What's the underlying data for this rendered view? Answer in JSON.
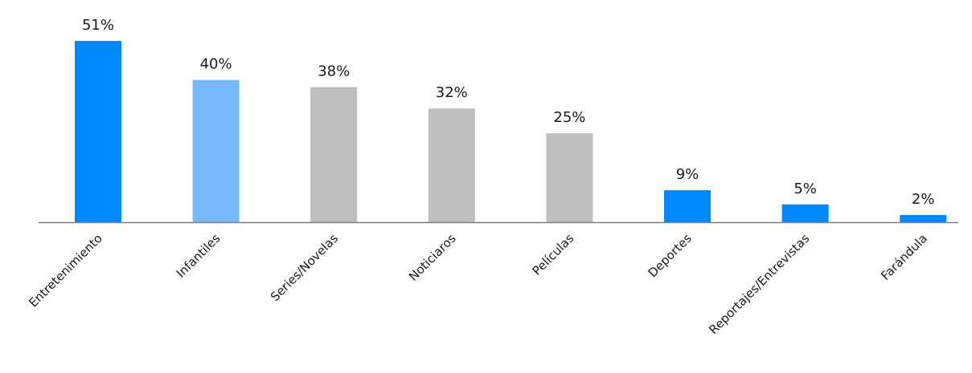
{
  "chart_data": {
    "type": "bar",
    "categories": [
      "Entretenimiento",
      "Infantiles",
      "Series/Novelas",
      "Noticiaros",
      "Películas",
      "Deportes",
      "Reportajes/Entrevistas",
      "Farándula"
    ],
    "values": [
      51,
      40,
      38,
      32,
      25,
      9,
      5,
      2
    ],
    "value_labels": [
      "51%",
      "40%",
      "38%",
      "32%",
      "25%",
      "9%",
      "5%",
      "2%"
    ],
    "bar_colors": [
      "#0088ff",
      "#77bbff",
      "#bfbfbf",
      "#bfbfbf",
      "#bfbfbf",
      "#0088ff",
      "#0088ff",
      "#0088ff"
    ],
    "axis_color": "#808080",
    "title": "",
    "xlabel": "",
    "ylabel": "",
    "ylim": [
      0,
      51
    ],
    "grid": false,
    "legend": "none"
  }
}
